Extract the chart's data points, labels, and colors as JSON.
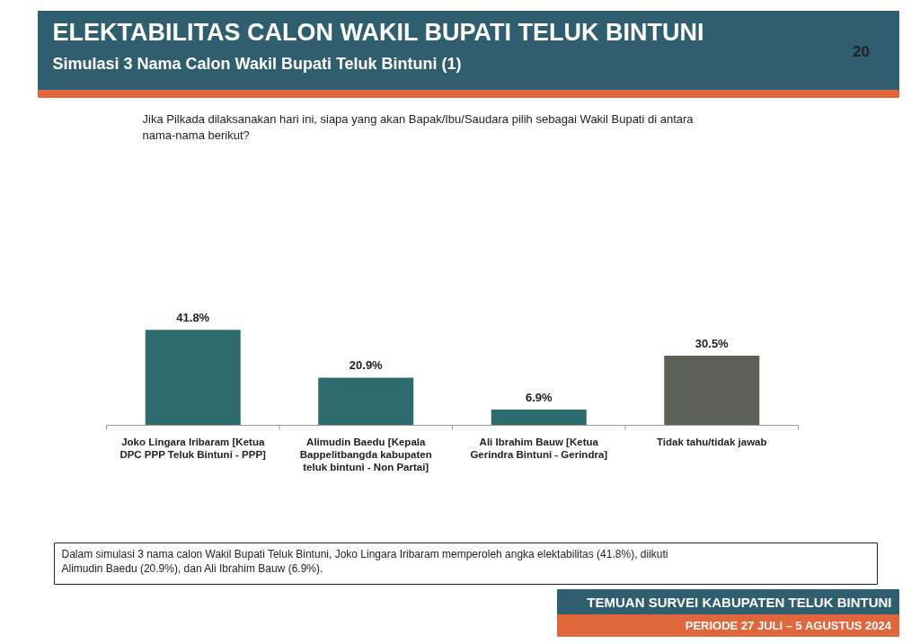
{
  "chart_data": {
    "type": "bar",
    "title": "ELEKTABILITAS CALON WAKIL BUPATI TELUK BINTUNI",
    "subtitle": "Simulasi 3 Nama Calon Wakil Bupati Teluk Bintuni (1)",
    "categories": [
      "Joko Lingara Iribaram [Ketua DPC PPP Teluk Bintuni - PPP]",
      "Alimudin Baedu [Kepala Bappelitbangda kabupaten teluk bintuni - Non Partai]",
      "Ali Ibrahim Bauw [Ketua Gerindra Bintuni - Gerindra]",
      "Tidak tahu/tidak jawab"
    ],
    "values": [
      41.8,
      20.9,
      6.9,
      30.5
    ],
    "colors": [
      "#2e6b6e",
      "#2e6b6e",
      "#2e6b6e",
      "#5b6157"
    ],
    "value_labels": [
      "41.8%",
      "20.9%",
      "6.9%",
      "30.5%"
    ],
    "annotations": [
      "20",
      "Jika Pilkada dilaksanakan hari ini, siapa yang akan Bapak/Ibu/Saudara pilih sebagai Wakil Bupati di antara nama-nama berikut?",
      "Dalam simulasi 3 nama calon Wakil Bupati Teluk Bintuni, Joko Lingara Iribaram memperoleh angka elektabilitas (41.8%), diikuti Alimudin Baedu (20.9%), dan Ali Ibrahim Bauw (6.9%).",
      "TEMUAN SURVEI KABUPATEN TELUK BINTUNI",
      "PERIODE 27 JULI – 5 AGUSTUS 2024"
    ]
  }
}
